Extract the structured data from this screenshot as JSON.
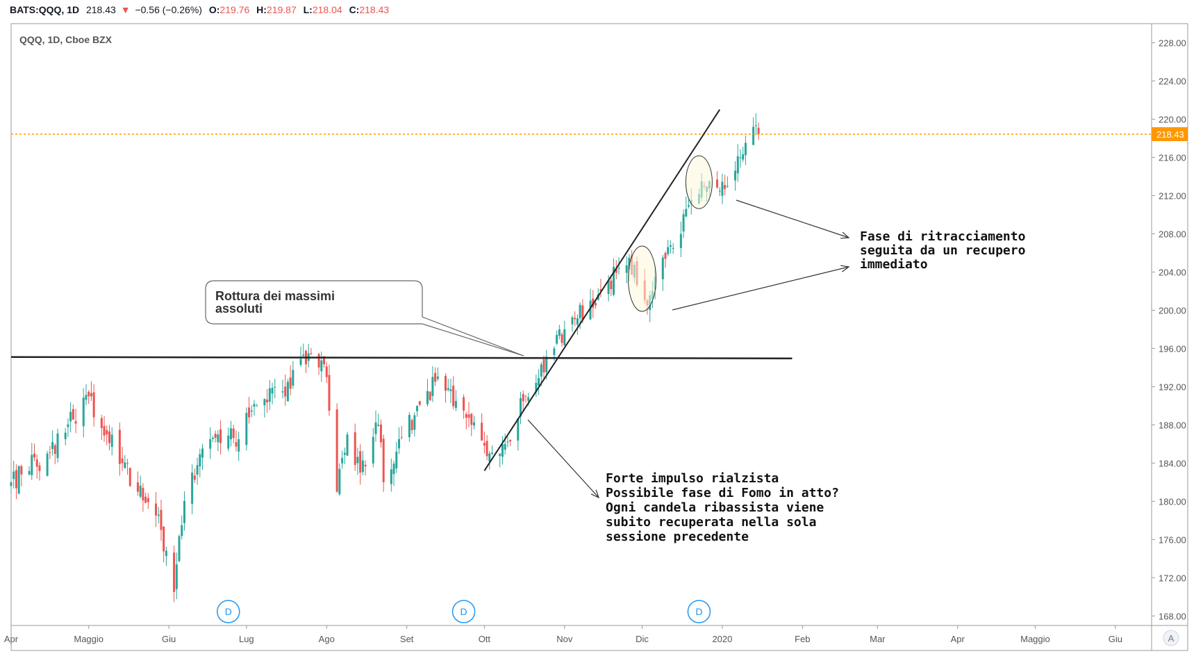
{
  "header": {
    "symbol": "BATS:QQQ, 1D",
    "price": "218.43",
    "change_arrow": "▼",
    "change": "−0.56 (−0.26%)",
    "open_label": "O:",
    "open": "219.76",
    "high_label": "H:",
    "high": "219.87",
    "low_label": "L:",
    "low": "218.04",
    "close_label": "C:",
    "close": "218.43"
  },
  "pane_title": "QQQ, 1D, Cboe BZX",
  "price_badge": "218.43",
  "auto_button": "A",
  "dividend_marker": "D",
  "annotations": {
    "breakout_callout": [
      "Rottura dei massimi",
      "assoluti"
    ],
    "retracement_note": [
      "Fase di ritracciamento",
      "seguita da un recupero",
      "immediato"
    ],
    "impulse_note": [
      "Forte impulso rialzista",
      "Possibile fase di Fomo in atto?",
      "Ogni candela ribassista viene",
      "subito recuperata nella sola",
      "sessione precedente"
    ]
  },
  "colors": {
    "up": "#26a69a",
    "down": "#ef5350",
    "last_price": "#ff9800",
    "dividend": "#2196f3",
    "ellipse_fill": "#fff8dc",
    "trendline": "#222222"
  },
  "chart_data": {
    "type": "candlestick",
    "title": "QQQ, 1D, Cboe BZX",
    "ylim": [
      167,
      230
    ],
    "y_ticks": [
      "168.00",
      "172.00",
      "176.00",
      "180.00",
      "184.00",
      "188.00",
      "192.00",
      "196.00",
      "200.00",
      "204.00",
      "208.00",
      "212.00",
      "216.00",
      "220.00",
      "224.00",
      "228.00"
    ],
    "x_labels": [
      {
        "label": "Apr",
        "date": "2019-04-01"
      },
      {
        "label": "Maggio",
        "date": "2019-05-01"
      },
      {
        "label": "Giu",
        "date": "2019-06-01"
      },
      {
        "label": "Lug",
        "date": "2019-07-01"
      },
      {
        "label": "Ago",
        "date": "2019-08-01"
      },
      {
        "label": "Set",
        "date": "2019-09-01"
      },
      {
        "label": "Ott",
        "date": "2019-10-01"
      },
      {
        "label": "Nov",
        "date": "2019-11-01"
      },
      {
        "label": "Dic",
        "date": "2019-12-01"
      },
      {
        "label": "2020",
        "date": "2020-01-01"
      },
      {
        "label": "Feb",
        "date": "2020-02-01"
      },
      {
        "label": "Mar",
        "date": "2020-03-01"
      },
      {
        "label": "Apr",
        "date": "2020-04-01"
      },
      {
        "label": "Maggio",
        "date": "2020-05-01"
      },
      {
        "label": "Giu",
        "date": "2020-06-01"
      }
    ],
    "xlim": [
      "2019-04-01",
      "2020-06-15"
    ],
    "last_price": 218.43,
    "resistance_level": 195.1,
    "trendline": [
      {
        "date": "2019-10-01",
        "price": 183.2
      },
      {
        "date": "2019-12-31",
        "price": 221.0
      }
    ],
    "dividend_dates": [
      "2019-06-24",
      "2019-09-23",
      "2019-12-23"
    ],
    "ellipses": [
      {
        "date": "2019-12-01",
        "price": 203.3
      },
      {
        "date": "2019-12-23",
        "price": 213.4
      }
    ],
    "key_points": [
      {
        "date": "2019-04-01",
        "price": 182
      },
      {
        "date": "2019-04-15",
        "price": 185
      },
      {
        "date": "2019-05-01",
        "price": 191
      },
      {
        "date": "2019-05-08",
        "price": 187
      },
      {
        "date": "2019-05-14",
        "price": 184
      },
      {
        "date": "2019-05-20",
        "price": 181
      },
      {
        "date": "2019-05-29",
        "price": 177
      },
      {
        "date": "2019-06-03",
        "price": 170.5
      },
      {
        "date": "2019-06-06",
        "price": 177.5
      },
      {
        "date": "2019-06-10",
        "price": 183
      },
      {
        "date": "2019-06-20",
        "price": 187
      },
      {
        "date": "2019-06-28",
        "price": 186.5
      },
      {
        "date": "2019-07-03",
        "price": 189.5
      },
      {
        "date": "2019-07-15",
        "price": 191.5
      },
      {
        "date": "2019-07-26",
        "price": 195.5
      },
      {
        "date": "2019-08-01",
        "price": 193
      },
      {
        "date": "2019-08-05",
        "price": 181
      },
      {
        "date": "2019-08-09",
        "price": 187
      },
      {
        "date": "2019-08-14",
        "price": 183
      },
      {
        "date": "2019-08-21",
        "price": 188
      },
      {
        "date": "2019-08-23",
        "price": 182
      },
      {
        "date": "2019-08-29",
        "price": 186.5
      },
      {
        "date": "2019-09-04",
        "price": 189
      },
      {
        "date": "2019-09-12",
        "price": 192.5
      },
      {
        "date": "2019-09-20",
        "price": 190.5
      },
      {
        "date": "2019-09-26",
        "price": 188
      },
      {
        "date": "2019-10-03",
        "price": 185
      },
      {
        "date": "2019-10-09",
        "price": 186
      },
      {
        "date": "2019-10-17",
        "price": 191
      },
      {
        "date": "2019-10-24",
        "price": 193.5
      },
      {
        "date": "2019-11-01",
        "price": 198
      },
      {
        "date": "2019-11-15",
        "price": 202
      },
      {
        "date": "2019-11-26",
        "price": 205.5
      },
      {
        "date": "2019-12-03",
        "price": 200.5
      },
      {
        "date": "2019-12-06",
        "price": 203.5
      },
      {
        "date": "2019-12-13",
        "price": 206.5
      },
      {
        "date": "2019-12-19",
        "price": 211
      },
      {
        "date": "2019-12-24",
        "price": 213.5
      },
      {
        "date": "2019-12-31",
        "price": 212.5
      },
      {
        "date": "2020-01-03",
        "price": 213
      },
      {
        "date": "2020-01-08",
        "price": 216
      },
      {
        "date": "2020-01-13",
        "price": 219.2
      },
      {
        "date": "2020-01-15",
        "price": 218.43
      }
    ]
  }
}
